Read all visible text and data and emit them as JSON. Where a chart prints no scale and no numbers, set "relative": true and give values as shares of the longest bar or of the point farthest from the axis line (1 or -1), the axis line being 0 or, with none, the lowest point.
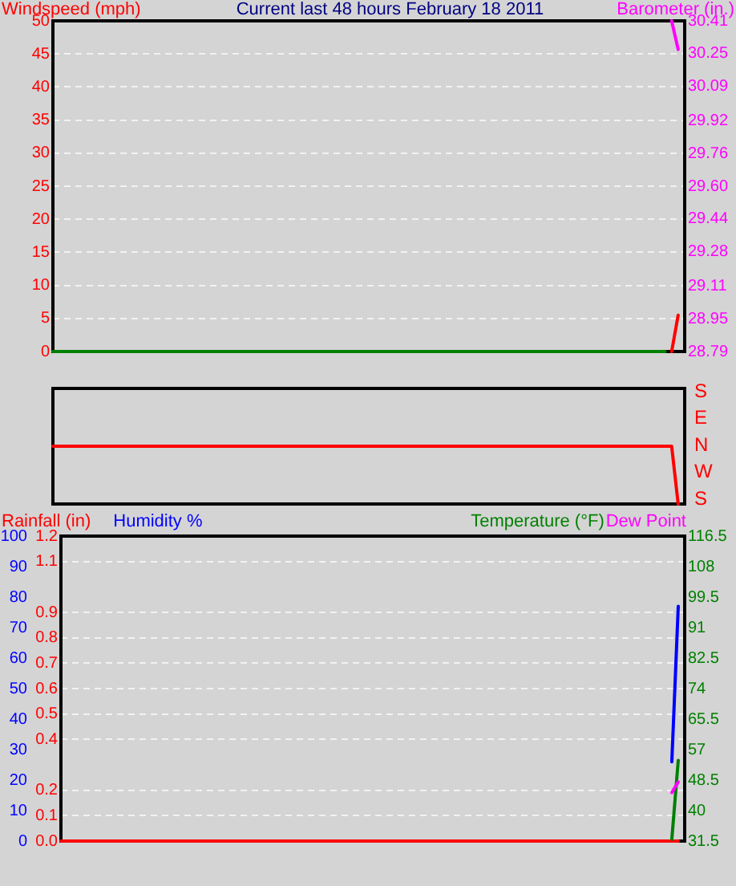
{
  "chart_data": [
    {
      "type": "line",
      "title": "Current last 48 hours February 18 2011",
      "ylabel": "Windspeed (mph)",
      "y2label": "Barometer (in.)",
      "categories": [
        null,
        null,
        null,
        null,
        null,
        null,
        null,
        null,
        null,
        null,
        null,
        null,
        null,
        null,
        null,
        null,
        null,
        null,
        null,
        null,
        null,
        null,
        null,
        null,
        null,
        null,
        null,
        null,
        null,
        null,
        null,
        null,
        null,
        null,
        null,
        null,
        null,
        null,
        null,
        null,
        null,
        null,
        null,
        null,
        null,
        null,
        null,
        null,
        null,
        null,
        null,
        null,
        null,
        null,
        null,
        null,
        null,
        null,
        null,
        null,
        null,
        null,
        null,
        null,
        null,
        null,
        null,
        null,
        null,
        null,
        null,
        null,
        null,
        null,
        null,
        null,
        null,
        null,
        null,
        null,
        null,
        null,
        null,
        null,
        null,
        null,
        null,
        null,
        null,
        null,
        null,
        null,
        null,
        null,
        null,
        null,
        null,
        null
      ],
      "series": [
        {
          "color": "#008000",
          "values": [
            0,
            0,
            0,
            0,
            0,
            0,
            0,
            0,
            0,
            0,
            0,
            0,
            0,
            0,
            0,
            0,
            0,
            0,
            0,
            0,
            0,
            0,
            0,
            0,
            0,
            0,
            0,
            0,
            0,
            0,
            0,
            0,
            0,
            0,
            0,
            0,
            0,
            0,
            0,
            0,
            0,
            0,
            0,
            0,
            0,
            0,
            0,
            0,
            0,
            0,
            0,
            0,
            0,
            0,
            0,
            0,
            0,
            0,
            0,
            0,
            0,
            0,
            0,
            0,
            0,
            0,
            0,
            0,
            0,
            0,
            0,
            0,
            0,
            0,
            0,
            0,
            0,
            0,
            0,
            0,
            0,
            0,
            0,
            0,
            0,
            0,
            0,
            0,
            0,
            0,
            0,
            0,
            0,
            0,
            0,
            null,
            null,
            null
          ]
        },
        {
          "color": "#ff0000",
          "values": [
            null,
            null,
            null,
            null,
            null,
            null,
            null,
            null,
            null,
            null,
            null,
            null,
            null,
            null,
            null,
            null,
            null,
            null,
            null,
            null,
            null,
            null,
            null,
            null,
            null,
            null,
            null,
            null,
            null,
            null,
            null,
            null,
            null,
            null,
            null,
            null,
            null,
            null,
            null,
            null,
            null,
            null,
            null,
            null,
            null,
            null,
            null,
            null,
            null,
            null,
            null,
            null,
            null,
            null,
            null,
            null,
            null,
            null,
            null,
            null,
            null,
            null,
            null,
            null,
            null,
            null,
            null,
            null,
            null,
            null,
            null,
            null,
            null,
            null,
            null,
            null,
            null,
            null,
            null,
            null,
            null,
            null,
            null,
            null,
            null,
            null,
            null,
            null,
            null,
            null,
            null,
            null,
            null,
            null,
            null,
            0,
            5.5,
            null
          ]
        },
        {
          "color": "#ff00ff",
          "axis": "y2",
          "values": [
            null,
            null,
            null,
            null,
            null,
            null,
            null,
            null,
            null,
            null,
            null,
            null,
            null,
            null,
            null,
            null,
            null,
            null,
            null,
            null,
            null,
            null,
            null,
            null,
            null,
            null,
            null,
            null,
            null,
            null,
            null,
            null,
            null,
            null,
            null,
            null,
            null,
            null,
            null,
            null,
            null,
            null,
            null,
            null,
            null,
            null,
            null,
            null,
            null,
            null,
            null,
            null,
            null,
            null,
            null,
            null,
            null,
            null,
            null,
            null,
            null,
            null,
            null,
            null,
            null,
            null,
            null,
            null,
            null,
            null,
            null,
            null,
            null,
            null,
            null,
            null,
            null,
            null,
            null,
            null,
            null,
            null,
            null,
            null,
            null,
            null,
            null,
            null,
            null,
            null,
            null,
            null,
            null,
            null,
            null,
            30.41,
            30.27,
            null
          ]
        }
      ],
      "ylim": [
        0,
        50
      ],
      "yticks": [
        0,
        5,
        10,
        15,
        20,
        25,
        30,
        35,
        40,
        45,
        50
      ],
      "y2lim": [
        28.79,
        30.41
      ],
      "y2ticks": [
        28.79,
        28.95,
        29.11,
        29.28,
        29.44,
        {
          "value": 29.6,
          "label": "29.60"
        },
        29.76,
        29.92,
        30.09,
        30.25,
        30.41
      ],
      "grid": "y",
      "marker": "none"
    },
    {
      "type": "line",
      "relative": true,
      "annotations": [
        "S",
        "E",
        "N",
        "W",
        "S"
      ],
      "categories": [
        null,
        null,
        null,
        null,
        null,
        null,
        null,
        null,
        null,
        null,
        null,
        null,
        null,
        null,
        null,
        null,
        null,
        null,
        null,
        null,
        null,
        null,
        null,
        null,
        null,
        null,
        null,
        null,
        null,
        null,
        null,
        null,
        null,
        null,
        null,
        null,
        null,
        null,
        null,
        null,
        null,
        null,
        null,
        null,
        null,
        null,
        null,
        null,
        null,
        null,
        null,
        null,
        null,
        null,
        null,
        null,
        null,
        null,
        null,
        null,
        null,
        null,
        null,
        null,
        null,
        null,
        null,
        null,
        null,
        null,
        null,
        null,
        null,
        null,
        null,
        null,
        null,
        null,
        null,
        null,
        null,
        null,
        null,
        null,
        null,
        null,
        null,
        null,
        null,
        null,
        null,
        null,
        null,
        null,
        null,
        null,
        null,
        null
      ],
      "series": [
        {
          "color": "#ff0000",
          "values": [
            1,
            1,
            1,
            1,
            1,
            1,
            1,
            1,
            1,
            1,
            1,
            1,
            1,
            1,
            1,
            1,
            1,
            1,
            1,
            1,
            1,
            1,
            1,
            1,
            1,
            1,
            1,
            1,
            1,
            1,
            1,
            1,
            1,
            1,
            1,
            1,
            1,
            1,
            1,
            1,
            1,
            1,
            1,
            1,
            1,
            1,
            1,
            1,
            1,
            1,
            1,
            1,
            1,
            1,
            1,
            1,
            1,
            1,
            1,
            1,
            1,
            1,
            1,
            1,
            1,
            1,
            1,
            1,
            1,
            1,
            1,
            1,
            1,
            1,
            1,
            1,
            1,
            1,
            1,
            1,
            1,
            1,
            1,
            1,
            1,
            1,
            1,
            1,
            1,
            1,
            1,
            1,
            1,
            1,
            1,
            1,
            0,
            null
          ]
        }
      ],
      "marker": "none"
    },
    {
      "type": "line",
      "ylabel": "Rainfall (in)",
      "y2label": "Temperature (°F)",
      "categories": [
        null,
        null,
        null,
        null,
        null,
        null,
        null,
        null,
        null,
        null,
        null,
        null,
        null,
        null,
        null,
        null,
        null,
        null,
        null,
        null,
        null,
        null,
        null,
        null,
        null,
        null,
        null,
        null,
        null,
        null,
        null,
        null,
        null,
        null,
        null,
        null,
        null,
        null,
        null,
        null,
        null,
        null,
        null,
        null,
        null,
        null,
        null,
        null,
        null,
        null,
        null,
        null,
        null,
        null,
        null,
        null,
        null,
        null,
        null,
        null,
        null,
        null,
        null,
        null,
        null,
        null,
        null,
        null,
        null,
        null,
        null,
        null,
        null,
        null,
        null,
        null,
        null,
        null,
        null,
        null,
        null,
        null,
        null,
        null,
        null,
        null,
        null,
        null,
        null,
        null,
        null,
        null,
        null,
        null,
        null,
        null,
        null,
        null
      ],
      "series": [
        {
          "color": "#ff0000",
          "values": [
            0,
            0,
            0,
            0,
            0,
            0,
            0,
            0,
            0,
            0,
            0,
            0,
            0,
            0,
            0,
            0,
            0,
            0,
            0,
            0,
            0,
            0,
            0,
            0,
            0,
            0,
            0,
            0,
            0,
            0,
            0,
            0,
            0,
            0,
            0,
            0,
            0,
            0,
            0,
            0,
            0,
            0,
            0,
            0,
            0,
            0,
            0,
            0,
            0,
            0,
            0,
            0,
            0,
            0,
            0,
            0,
            0,
            0,
            0,
            0,
            0,
            0,
            0,
            0,
            0,
            0,
            0,
            0,
            0,
            0,
            0,
            0,
            0,
            0,
            0,
            0,
            0,
            0,
            0,
            0,
            0,
            0,
            0,
            0,
            0,
            0,
            0,
            0,
            0,
            0,
            0,
            0,
            0,
            0,
            0,
            0,
            0,
            null
          ]
        },
        {
          "name": "Humidity %",
          "color": "#0000ff",
          "axis": "y3",
          "values": [
            null,
            null,
            null,
            null,
            null,
            null,
            null,
            null,
            null,
            null,
            null,
            null,
            null,
            null,
            null,
            null,
            null,
            null,
            null,
            null,
            null,
            null,
            null,
            null,
            null,
            null,
            null,
            null,
            null,
            null,
            null,
            null,
            null,
            null,
            null,
            null,
            null,
            null,
            null,
            null,
            null,
            null,
            null,
            null,
            null,
            null,
            null,
            null,
            null,
            null,
            null,
            null,
            null,
            null,
            null,
            null,
            null,
            null,
            null,
            null,
            null,
            null,
            null,
            null,
            null,
            null,
            null,
            null,
            null,
            null,
            null,
            null,
            null,
            null,
            null,
            null,
            null,
            null,
            null,
            null,
            null,
            null,
            null,
            null,
            null,
            null,
            null,
            null,
            null,
            null,
            null,
            null,
            null,
            null,
            null,
            26,
            77,
            null
          ]
        },
        {
          "color": "#008000",
          "axis": "y2",
          "values": [
            null,
            null,
            null,
            null,
            null,
            null,
            null,
            null,
            null,
            null,
            null,
            null,
            null,
            null,
            null,
            null,
            null,
            null,
            null,
            null,
            null,
            null,
            null,
            null,
            null,
            null,
            null,
            null,
            null,
            null,
            null,
            null,
            null,
            null,
            null,
            null,
            null,
            null,
            null,
            null,
            null,
            null,
            null,
            null,
            null,
            null,
            null,
            null,
            null,
            null,
            null,
            null,
            null,
            null,
            null,
            null,
            null,
            null,
            null,
            null,
            null,
            null,
            null,
            null,
            null,
            null,
            null,
            null,
            null,
            null,
            null,
            null,
            null,
            null,
            null,
            null,
            null,
            null,
            null,
            null,
            null,
            null,
            null,
            null,
            null,
            null,
            null,
            null,
            null,
            null,
            null,
            null,
            null,
            null,
            null,
            32,
            54,
            null
          ]
        },
        {
          "name": "Dew Point",
          "color": "#ff00ff",
          "axis": "y2",
          "values": [
            null,
            null,
            null,
            null,
            null,
            null,
            null,
            null,
            null,
            null,
            null,
            null,
            null,
            null,
            null,
            null,
            null,
            null,
            null,
            null,
            null,
            null,
            null,
            null,
            null,
            null,
            null,
            null,
            null,
            null,
            null,
            null,
            null,
            null,
            null,
            null,
            null,
            null,
            null,
            null,
            null,
            null,
            null,
            null,
            null,
            null,
            null,
            null,
            null,
            null,
            null,
            null,
            null,
            null,
            null,
            null,
            null,
            null,
            null,
            null,
            null,
            null,
            null,
            null,
            null,
            null,
            null,
            null,
            null,
            null,
            null,
            null,
            null,
            null,
            null,
            null,
            null,
            null,
            null,
            null,
            null,
            null,
            null,
            null,
            null,
            null,
            null,
            null,
            null,
            null,
            null,
            null,
            null,
            null,
            null,
            45,
            48,
            null
          ]
        }
      ],
      "ylim": [
        0,
        1.2
      ],
      "yticks": [
        {
          "value": 0,
          "label": "0.0"
        },
        0.1,
        0.2,
        0.4,
        0.5,
        0.6,
        0.7,
        0.8,
        0.9,
        1.1,
        1.2
      ],
      "y3lim": [
        0,
        100
      ],
      "y3ticks": [
        0,
        10,
        20,
        30,
        40,
        50,
        60,
        70,
        80,
        90,
        100
      ],
      "y2lim": [
        31.5,
        116.5
      ],
      "y2ticks": [
        31.5,
        40,
        48.5,
        57,
        65.5,
        74,
        82.5,
        91,
        99.5,
        108,
        116.5
      ],
      "grid": "y",
      "marker": "none"
    }
  ]
}
